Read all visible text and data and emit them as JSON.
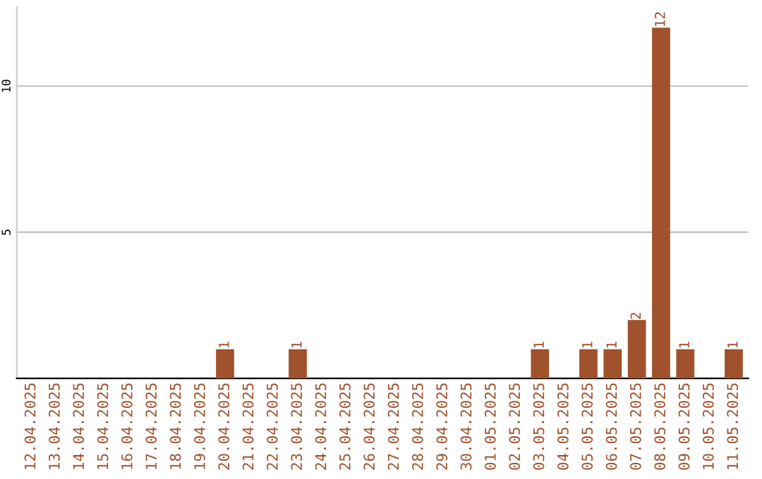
{
  "chart_data": {
    "type": "bar",
    "categories": [
      "12.04.2025",
      "13.04.2025",
      "14.04.2025",
      "15.04.2025",
      "16.04.2025",
      "17.04.2025",
      "18.04.2025",
      "19.04.2025",
      "20.04.2025",
      "21.04.2025",
      "22.04.2025",
      "23.04.2025",
      "24.04.2025",
      "25.04.2025",
      "26.04.2025",
      "27.04.2025",
      "28.04.2025",
      "29.04.2025",
      "30.04.2025",
      "01.05.2025",
      "02.05.2025",
      "03.05.2025",
      "04.05.2025",
      "05.05.2025",
      "06.05.2025",
      "07.05.2025",
      "08.05.2025",
      "09.05.2025",
      "10.05.2025",
      "11.05.2025"
    ],
    "values": [
      0,
      0,
      0,
      0,
      0,
      0,
      0,
      0,
      1,
      0,
      0,
      1,
      0,
      0,
      0,
      0,
      0,
      0,
      0,
      0,
      0,
      1,
      0,
      1,
      1,
      2,
      12,
      1,
      0,
      1
    ],
    "value_labels": [
      null,
      null,
      null,
      null,
      null,
      null,
      null,
      null,
      "1",
      null,
      null,
      "1",
      null,
      null,
      null,
      null,
      null,
      null,
      null,
      null,
      null,
      "1",
      null,
      "1",
      "1",
      "2",
      "12",
      "1",
      null,
      "1"
    ],
    "color": "#a0522d",
    "ylim": [
      0,
      12.7
    ],
    "yticks": [
      5,
      10
    ],
    "grid": "y"
  }
}
